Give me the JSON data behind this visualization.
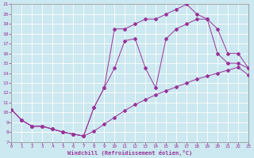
{
  "xlabel": "Windchill (Refroidissement éolien,°C)",
  "bg_color": "#cce8f0",
  "grid_color": "#ffffff",
  "line_color": "#993399",
  "xmin": 0,
  "xmax": 23,
  "ymin": 7,
  "ymax": 21,
  "yticks": [
    7,
    8,
    9,
    10,
    11,
    12,
    13,
    14,
    15,
    16,
    17,
    18,
    19,
    20,
    21
  ],
  "xticks": [
    0,
    1,
    2,
    3,
    4,
    5,
    6,
    7,
    8,
    9,
    10,
    11,
    12,
    13,
    14,
    15,
    16,
    17,
    18,
    19,
    20,
    21,
    22,
    23
  ],
  "line1_x": [
    0,
    1,
    2,
    3,
    4,
    5,
    6,
    7,
    8,
    9,
    10,
    11,
    12,
    13,
    14,
    15,
    16,
    17,
    18,
    19,
    20,
    21,
    22,
    23
  ],
  "line1_y": [
    10.3,
    9.2,
    8.6,
    8.6,
    8.3,
    8.0,
    7.8,
    7.6,
    8.1,
    8.8,
    9.5,
    10.2,
    10.8,
    11.3,
    11.8,
    12.2,
    12.6,
    13.0,
    13.4,
    13.7,
    14.0,
    14.3,
    14.6,
    13.8
  ],
  "line2_x": [
    0,
    1,
    2,
    3,
    4,
    5,
    6,
    7,
    8,
    9,
    10,
    11,
    12,
    13,
    14,
    15,
    16,
    17,
    18,
    19,
    20,
    21,
    22,
    23
  ],
  "line2_y": [
    10.3,
    9.2,
    8.6,
    8.6,
    8.3,
    8.0,
    7.8,
    7.6,
    10.5,
    12.5,
    14.5,
    17.3,
    17.5,
    14.5,
    12.5,
    17.5,
    18.5,
    19.0,
    19.5,
    19.5,
    16.0,
    15.0,
    15.0,
    14.5
  ],
  "line3_x": [
    0,
    1,
    2,
    3,
    4,
    5,
    6,
    7,
    8,
    9,
    10,
    11,
    12,
    13,
    14,
    15,
    16,
    17,
    18,
    19,
    20,
    21,
    22,
    23
  ],
  "line3_y": [
    10.3,
    9.2,
    8.6,
    8.6,
    8.3,
    8.0,
    7.8,
    7.6,
    10.5,
    12.5,
    18.5,
    18.5,
    19.0,
    19.5,
    19.5,
    20.0,
    20.5,
    21.0,
    20.0,
    19.5,
    18.5,
    16.0,
    16.0,
    14.5
  ]
}
